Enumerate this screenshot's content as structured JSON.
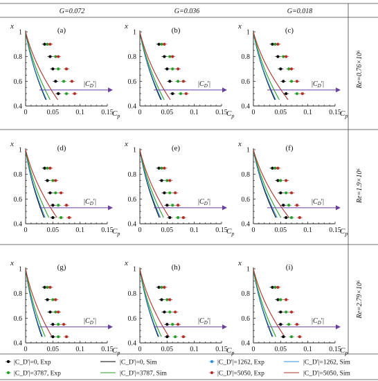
{
  "column_headers": [
    "G=0.072",
    "G=0.036",
    "G=0.018"
  ],
  "row_labels": [
    "Re=0.76×10⁶",
    "Re=1.9×10⁶",
    "Re=2.79×10⁶"
  ],
  "legend": [
    {
      "label": "|C_D'|=0, Exp",
      "kind": "marker",
      "color": "#000000"
    },
    {
      "label": "|C_D'|=0, Sim",
      "kind": "line",
      "color": "#000000"
    },
    {
      "label": "|C_D'|=1262, Exp",
      "kind": "marker",
      "color": "#2f8fd8"
    },
    {
      "label": "|C_D'|=1262, Sim",
      "kind": "line",
      "color": "#2f8fd8"
    },
    {
      "label": "|C_D'|=3787, Exp",
      "kind": "marker",
      "color": "#2a9d2a"
    },
    {
      "label": "|C_D'|=3787, Sim",
      "kind": "line",
      "color": "#2a9d2a"
    },
    {
      "label": "|C_D'|=5050, Exp",
      "kind": "marker",
      "color": "#b0302a"
    },
    {
      "label": "|C_D'|=5050, Sim",
      "kind": "line",
      "color": "#b0302a"
    }
  ],
  "colors": {
    "s0": "#000000",
    "s1262": "#2f8fd8",
    "s3787": "#2a9d2a",
    "s5050": "#b0302a",
    "arrow": "#6a3fa0"
  },
  "chart_data": [
    {
      "type": "scatter",
      "panel": "(a)",
      "xlabel": "Cp",
      "ylabel": "x",
      "xlim": [
        0,
        0.15
      ],
      "ylim": [
        0.4,
        1
      ],
      "xticks": [
        "0",
        "0.05",
        "0.1",
        "0.15"
      ],
      "yticks": [
        "0.4",
        "0.6",
        "0.8",
        "1"
      ],
      "arrow_label": "|C_D'|",
      "series": [
        {
          "name": "|C_D'|=0",
          "k": [
            0.038,
            0.054
          ],
          "pts": [
            [
              0.035,
              0.9
            ],
            [
              0.045,
              0.8
            ],
            [
              0.05,
              0.7
            ],
            [
              0.055,
              0.6
            ],
            [
              0.06,
              0.5
            ]
          ]
        },
        {
          "name": "|C_D'|=1262",
          "k": [
            0.039,
            0.056
          ],
          "pts": []
        },
        {
          "name": "|C_D'|=3787",
          "k": [
            0.045,
            0.067
          ],
          "pts": [
            [
              0.04,
              0.9
            ],
            [
              0.055,
              0.8
            ],
            [
              0.06,
              0.7
            ],
            [
              0.07,
              0.6
            ],
            [
              0.075,
              0.5
            ]
          ]
        },
        {
          "name": "|C_D'|=5050",
          "k": [
            0.058,
            0.09
          ],
          "pts": [
            [
              0.045,
              0.9
            ],
            [
              0.06,
              0.8
            ],
            [
              0.075,
              0.7
            ],
            [
              0.085,
              0.6
            ],
            [
              0.09,
              0.5
            ]
          ]
        }
      ]
    },
    {
      "type": "scatter",
      "panel": "(b)",
      "xlabel": "Cp",
      "ylabel": "x",
      "xlim": [
        0,
        0.15
      ],
      "ylim": [
        0.4,
        1
      ],
      "xticks": [
        "0",
        "0.05",
        "0.1",
        "0.15"
      ],
      "yticks": [
        "0.4",
        "0.6",
        "0.8",
        "1"
      ],
      "arrow_label": "|C_D'|",
      "series": [
        {
          "name": "|C_D'|=0",
          "k": [
            0.04,
            0.055
          ],
          "pts": [
            [
              0.035,
              0.9
            ],
            [
              0.045,
              0.8
            ],
            [
              0.05,
              0.7
            ],
            [
              0.055,
              0.6
            ],
            [
              0.06,
              0.5
            ]
          ]
        },
        {
          "name": "|C_D'|=1262",
          "k": [
            0.041,
            0.058
          ],
          "pts": []
        },
        {
          "name": "|C_D'|=3787",
          "k": [
            0.045,
            0.066
          ],
          "pts": [
            [
              0.04,
              0.9
            ],
            [
              0.055,
              0.8
            ],
            [
              0.06,
              0.7
            ],
            [
              0.07,
              0.6
            ],
            [
              0.075,
              0.5
            ]
          ]
        },
        {
          "name": "|C_D'|=5050",
          "k": [
            0.055,
            0.085
          ],
          "pts": [
            [
              0.045,
              0.9
            ],
            [
              0.06,
              0.8
            ],
            [
              0.07,
              0.7
            ],
            [
              0.08,
              0.6
            ],
            [
              0.085,
              0.5
            ]
          ]
        }
      ]
    },
    {
      "type": "scatter",
      "panel": "(c)",
      "xlabel": "Cp",
      "ylabel": "x",
      "xlim": [
        0,
        0.15
      ],
      "ylim": [
        0.4,
        1
      ],
      "xticks": [
        "0",
        "0.05",
        "0.1",
        "0.15"
      ],
      "yticks": [
        "0.4",
        "0.6",
        "0.8",
        "1"
      ],
      "arrow_label": "|C_D'|",
      "series": [
        {
          "name": "|C_D'|=0",
          "k": [
            0.04,
            0.058
          ],
          "pts": [
            [
              0.035,
              0.9
            ],
            [
              0.045,
              0.8
            ],
            [
              0.05,
              0.7
            ],
            [
              0.055,
              0.6
            ],
            [
              0.06,
              0.5
            ]
          ]
        },
        {
          "name": "|C_D'|=1262",
          "k": [
            0.041,
            0.061
          ],
          "pts": []
        },
        {
          "name": "|C_D'|=3787",
          "k": [
            0.047,
            0.072
          ],
          "pts": [
            [
              0.04,
              0.9
            ],
            [
              0.055,
              0.8
            ],
            [
              0.065,
              0.7
            ],
            [
              0.07,
              0.6
            ],
            [
              0.08,
              0.5
            ]
          ]
        },
        {
          "name": "|C_D'|=5050",
          "k": [
            0.06,
            0.102
          ],
          "pts": [
            [
              0.045,
              0.9
            ],
            [
              0.06,
              0.8
            ],
            [
              0.07,
              0.7
            ],
            [
              0.08,
              0.6
            ],
            [
              0.09,
              0.5
            ]
          ]
        }
      ]
    },
    {
      "type": "scatter",
      "panel": "(d)",
      "xlabel": "Cp",
      "ylabel": "x",
      "xlim": [
        0,
        0.15
      ],
      "ylim": [
        0.4,
        1
      ],
      "xticks": [
        "0",
        "0.05",
        "0.1",
        "0.15"
      ],
      "yticks": [
        "0.4",
        "0.6",
        "0.8",
        "1"
      ],
      "arrow_label": "|C_D'|",
      "series": [
        {
          "name": "|C_D'|=0",
          "k": [
            0.034,
            0.05
          ],
          "pts": [
            [
              0.035,
              0.85
            ],
            [
              0.04,
              0.75
            ],
            [
              0.045,
              0.65
            ],
            [
              0.05,
              0.55
            ],
            [
              0.05,
              0.45
            ]
          ]
        },
        {
          "name": "|C_D'|=1262",
          "k": [
            0.036,
            0.053
          ],
          "pts": []
        },
        {
          "name": "|C_D'|=3787",
          "k": [
            0.042,
            0.065
          ],
          "pts": [
            [
              0.04,
              0.85
            ],
            [
              0.05,
              0.75
            ],
            [
              0.055,
              0.65
            ],
            [
              0.06,
              0.55
            ],
            [
              0.065,
              0.45
            ]
          ]
        },
        {
          "name": "|C_D'|=5050",
          "k": [
            0.055,
            0.09
          ],
          "pts": [
            [
              0.045,
              0.85
            ],
            [
              0.055,
              0.75
            ],
            [
              0.065,
              0.65
            ],
            [
              0.075,
              0.55
            ],
            [
              0.08,
              0.45
            ]
          ]
        }
      ]
    },
    {
      "type": "scatter",
      "panel": "(e)",
      "xlabel": "Cp",
      "ylabel": "x",
      "xlim": [
        0,
        0.15
      ],
      "ylim": [
        0.4,
        1
      ],
      "xticks": [
        "0",
        "0.05",
        "0.1",
        "0.15"
      ],
      "yticks": [
        "0.4",
        "0.6",
        "0.8",
        "1"
      ],
      "arrow_label": "|C_D'|",
      "series": [
        {
          "name": "|C_D'|=0",
          "k": [
            0.036,
            0.053
          ],
          "pts": [
            [
              0.035,
              0.85
            ],
            [
              0.04,
              0.75
            ],
            [
              0.045,
              0.65
            ],
            [
              0.05,
              0.55
            ],
            [
              0.055,
              0.45
            ]
          ]
        },
        {
          "name": "|C_D'|=1262",
          "k": [
            0.038,
            0.056
          ],
          "pts": []
        },
        {
          "name": "|C_D'|=3787",
          "k": [
            0.043,
            0.066
          ],
          "pts": [
            [
              0.04,
              0.85
            ],
            [
              0.05,
              0.75
            ],
            [
              0.055,
              0.65
            ],
            [
              0.06,
              0.55
            ],
            [
              0.07,
              0.45
            ]
          ]
        },
        {
          "name": "|C_D'|=5050",
          "k": [
            0.052,
            0.085
          ],
          "pts": [
            [
              0.045,
              0.85
            ],
            [
              0.055,
              0.75
            ],
            [
              0.065,
              0.65
            ],
            [
              0.07,
              0.55
            ],
            [
              0.08,
              0.45
            ]
          ]
        }
      ]
    },
    {
      "type": "scatter",
      "panel": "(f)",
      "xlabel": "Cp",
      "ylabel": "x",
      "xlim": [
        0,
        0.15
      ],
      "ylim": [
        0.4,
        1
      ],
      "xticks": [
        "0",
        "0.05",
        "0.1",
        "0.15"
      ],
      "yticks": [
        "0.4",
        "0.6",
        "0.8",
        "1"
      ],
      "arrow_label": "|C_D'|",
      "series": [
        {
          "name": "|C_D'|=0",
          "k": [
            0.042,
            0.06
          ],
          "pts": [
            [
              0.035,
              0.85
            ],
            [
              0.045,
              0.75
            ],
            [
              0.05,
              0.65
            ],
            [
              0.055,
              0.55
            ],
            [
              0.06,
              0.45
            ]
          ]
        },
        {
          "name": "|C_D'|=1262",
          "k": [
            0.044,
            0.064
          ],
          "pts": []
        },
        {
          "name": "|C_D'|=3787",
          "k": [
            0.05,
            0.076
          ],
          "pts": [
            [
              0.04,
              0.85
            ],
            [
              0.05,
              0.75
            ],
            [
              0.06,
              0.65
            ],
            [
              0.065,
              0.55
            ],
            [
              0.07,
              0.45
            ]
          ]
        },
        {
          "name": "|C_D'|=5050",
          "k": [
            0.062,
            0.104
          ],
          "pts": [
            [
              0.045,
              0.85
            ],
            [
              0.06,
              0.75
            ],
            [
              0.07,
              0.65
            ],
            [
              0.08,
              0.55
            ],
            [
              0.085,
              0.45
            ]
          ]
        }
      ]
    },
    {
      "type": "scatter",
      "panel": "(g)",
      "xlabel": "Cp",
      "ylabel": "x",
      "xlim": [
        0,
        0.15
      ],
      "ylim": [
        0.4,
        1
      ],
      "xticks": [
        "0",
        "0.05",
        "0.1",
        "0.15"
      ],
      "yticks": [
        "0.4",
        "0.6",
        "0.8",
        "1"
      ],
      "arrow_label": "|C_D'|",
      "series": [
        {
          "name": "|C_D'|=0",
          "k": [
            0.03,
            0.044
          ],
          "pts": [
            [
              0.035,
              0.85
            ],
            [
              0.04,
              0.75
            ],
            [
              0.045,
              0.65
            ],
            [
              0.05,
              0.55
            ],
            [
              0.05,
              0.45
            ]
          ]
        },
        {
          "name": "|C_D'|=1262",
          "k": [
            0.031,
            0.046
          ],
          "pts": []
        },
        {
          "name": "|C_D'|=3787",
          "k": [
            0.035,
            0.055
          ],
          "pts": [
            [
              0.04,
              0.85
            ],
            [
              0.05,
              0.75
            ],
            [
              0.055,
              0.65
            ],
            [
              0.06,
              0.55
            ],
            [
              0.06,
              0.45
            ]
          ]
        },
        {
          "name": "|C_D'|=5050",
          "k": [
            0.045,
            0.078
          ],
          "pts": [
            [
              0.045,
              0.85
            ],
            [
              0.055,
              0.75
            ],
            [
              0.06,
              0.65
            ],
            [
              0.07,
              0.55
            ],
            [
              0.075,
              0.45
            ]
          ]
        }
      ]
    },
    {
      "type": "scatter",
      "panel": "(h)",
      "xlabel": "Cp",
      "ylabel": "x",
      "xlim": [
        0,
        0.15
      ],
      "ylim": [
        0.4,
        1
      ],
      "xticks": [
        "0",
        "0.05",
        "0.1",
        "0.15"
      ],
      "yticks": [
        "0.4",
        "0.6",
        "0.8",
        "1"
      ],
      "arrow_label": "|C_D'|",
      "series": [
        {
          "name": "|C_D'|=0",
          "k": [
            0.034,
            0.05
          ],
          "pts": [
            [
              0.035,
              0.85
            ],
            [
              0.04,
              0.75
            ],
            [
              0.045,
              0.65
            ],
            [
              0.05,
              0.55
            ],
            [
              0.05,
              0.45
            ]
          ]
        },
        {
          "name": "|C_D'|=1262",
          "k": [
            0.035,
            0.052
          ],
          "pts": []
        },
        {
          "name": "|C_D'|=3787",
          "k": [
            0.039,
            0.06
          ],
          "pts": [
            [
              0.04,
              0.85
            ],
            [
              0.05,
              0.75
            ],
            [
              0.055,
              0.65
            ],
            [
              0.06,
              0.55
            ],
            [
              0.065,
              0.45
            ]
          ]
        },
        {
          "name": "|C_D'|=5050",
          "k": [
            0.05,
            0.086
          ],
          "pts": [
            [
              0.045,
              0.85
            ],
            [
              0.055,
              0.75
            ],
            [
              0.065,
              0.65
            ],
            [
              0.07,
              0.55
            ],
            [
              0.08,
              0.45
            ]
          ]
        }
      ]
    },
    {
      "type": "scatter",
      "panel": "(i)",
      "xlabel": "Cp",
      "ylabel": "x",
      "xlim": [
        0,
        0.15
      ],
      "ylim": [
        0.4,
        1
      ],
      "xticks": [
        "0",
        "0.05",
        "0.1",
        "0.15"
      ],
      "yticks": [
        "0.4",
        "0.6",
        "0.8",
        "1"
      ],
      "arrow_label": "|C_D'|",
      "series": [
        {
          "name": "|C_D'|=0",
          "k": [
            0.034,
            0.053
          ],
          "pts": [
            [
              0.035,
              0.85
            ],
            [
              0.045,
              0.75
            ],
            [
              0.05,
              0.65
            ],
            [
              0.05,
              0.55
            ],
            [
              0.055,
              0.45
            ]
          ]
        },
        {
          "name": "|C_D'|=1262",
          "k": [
            0.035,
            0.055
          ],
          "pts": []
        },
        {
          "name": "|C_D'|=3787",
          "k": [
            0.04,
            0.064
          ],
          "pts": [
            [
              0.04,
              0.85
            ],
            [
              0.05,
              0.75
            ],
            [
              0.06,
              0.65
            ],
            [
              0.065,
              0.55
            ],
            [
              0.07,
              0.45
            ]
          ]
        },
        {
          "name": "|C_D'|=5050",
          "k": [
            0.054,
            0.092
          ],
          "pts": [
            [
              0.045,
              0.85
            ],
            [
              0.06,
              0.75
            ],
            [
              0.07,
              0.65
            ],
            [
              0.08,
              0.55
            ],
            [
              0.085,
              0.45
            ]
          ]
        }
      ]
    }
  ]
}
